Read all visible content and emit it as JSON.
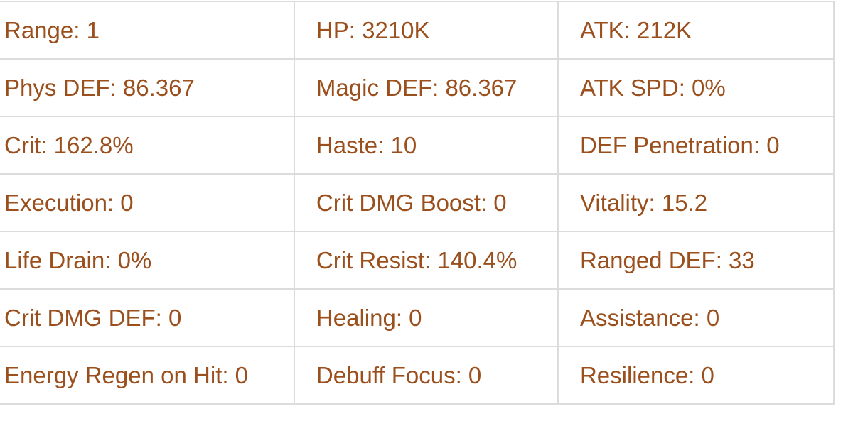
{
  "stats_table": {
    "rows": [
      [
        "Range: 1",
        "HP: 3210K",
        "ATK: 212K"
      ],
      [
        "Phys DEF: 86.367",
        "Magic DEF: 86.367",
        "ATK SPD: 0%"
      ],
      [
        "Crit: 162.8%",
        "Haste: 10",
        "DEF Penetration: 0"
      ],
      [
        "Execution: 0",
        "Crit DMG Boost: 0",
        "Vitality: 15.2"
      ],
      [
        "Life Drain: 0%",
        "Crit Resist: 140.4%",
        "Ranged DEF: 33"
      ],
      [
        "Crit DMG DEF: 0",
        "Healing: 0",
        "Assistance: 0"
      ],
      [
        "Energy Regen on Hit: 0",
        "Debuff Focus: 0",
        "Resilience: 0"
      ]
    ]
  },
  "colors": {
    "text": "#9a4f1c",
    "border": "#dcdcdc",
    "background": "#ffffff"
  }
}
